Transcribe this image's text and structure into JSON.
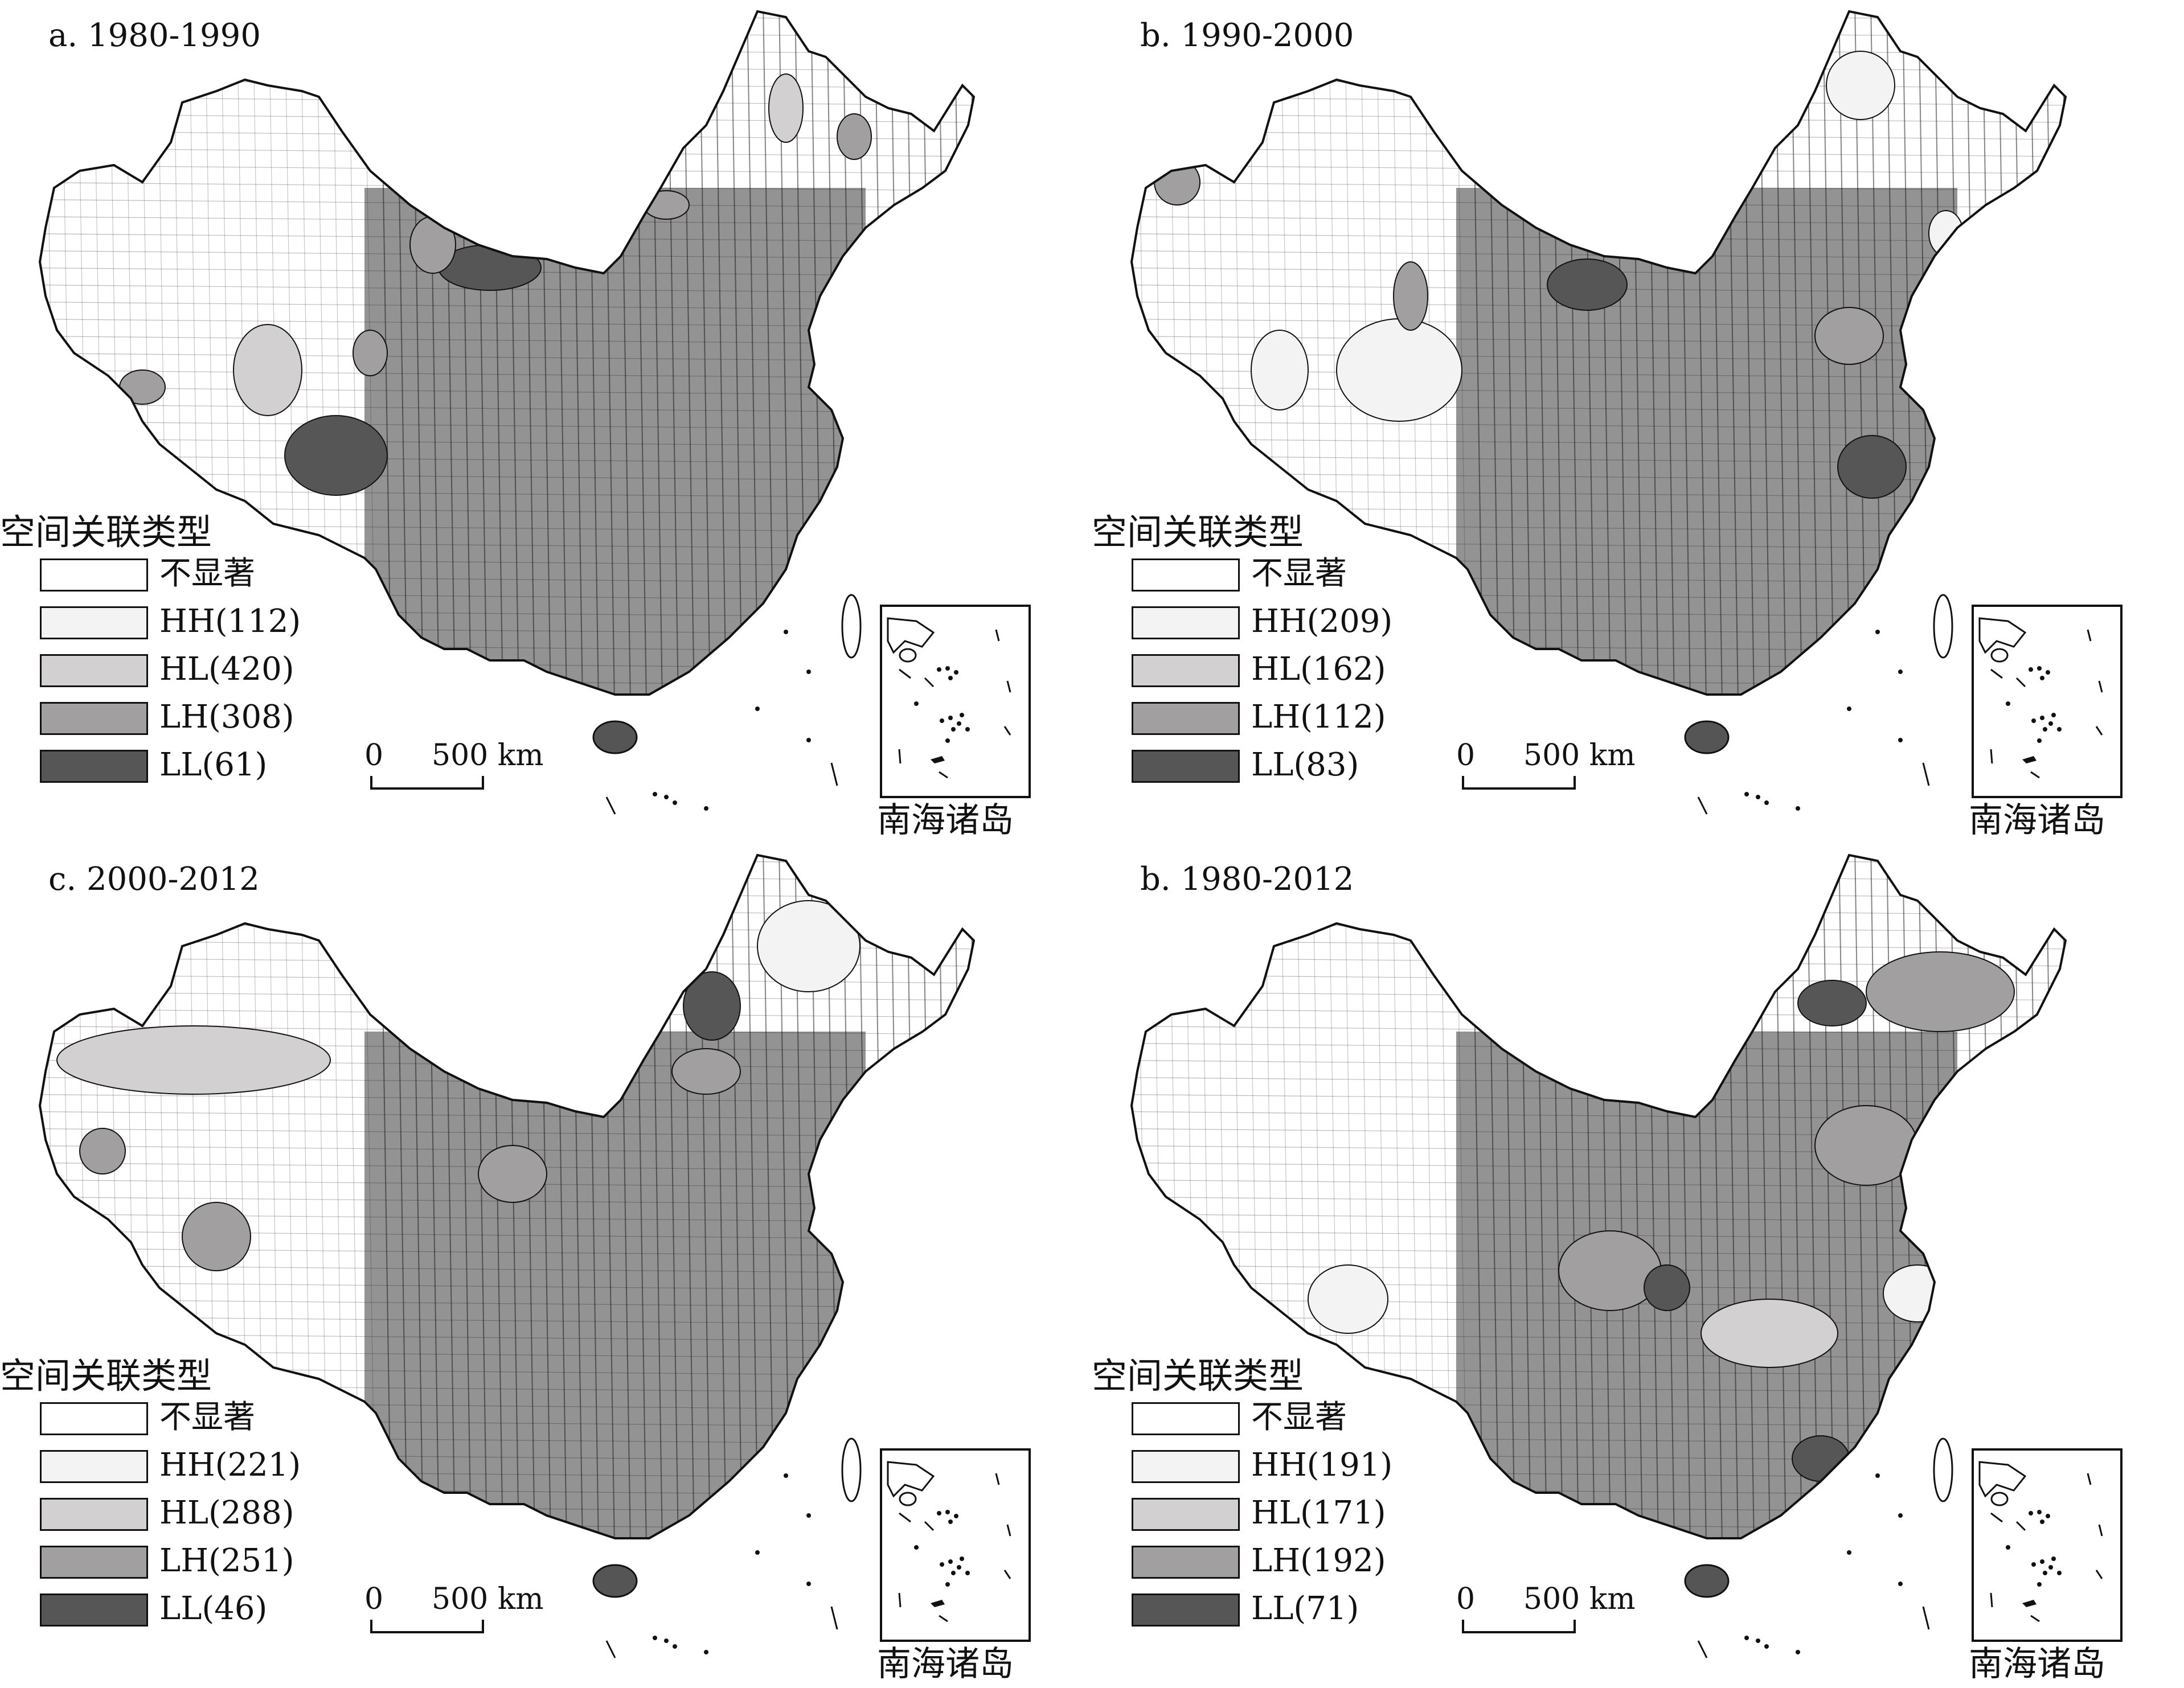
{
  "legend_title": "空间关联类型",
  "scale": {
    "zero": "0",
    "distance": "500 km"
  },
  "inset_label": "南海诸岛",
  "colors": {
    "not_significant": "#ffffff",
    "HH": "#f3f3f3",
    "HL": "#d2d0d0",
    "LH": "#a19f9f",
    "LL": "#575656"
  },
  "panels": [
    {
      "title": "a. 1980-1990",
      "legend": [
        "不显著",
        "HH(112)",
        "HL(420)",
        "LH(308)",
        "LL(61)"
      ]
    },
    {
      "title": "b. 1990-2000",
      "legend": [
        "不显著",
        "HH(209)",
        "HL(162)",
        "LH(112)",
        "LL(83)"
      ]
    },
    {
      "title": "c. 2000-2012",
      "legend": [
        "不显著",
        "HH(221)",
        "HL(288)",
        "LH(251)",
        "LL(46)"
      ]
    },
    {
      "title": "b. 1980-2012",
      "legend": [
        "不显著",
        "HH(191)",
        "HL(171)",
        "LH(192)",
        "LL(71)"
      ]
    }
  ]
}
